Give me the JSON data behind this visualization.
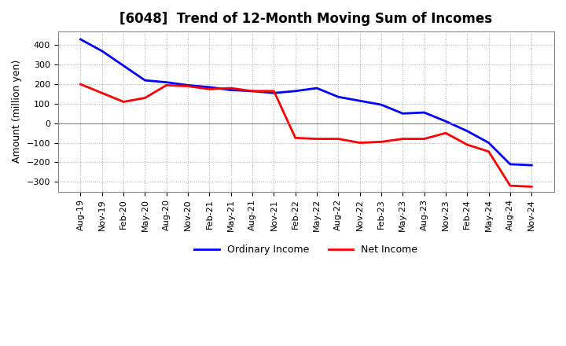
{
  "title": "[6048]  Trend of 12-Month Moving Sum of Incomes",
  "ylabel": "Amount (million yen)",
  "ylim": [
    -350,
    470
  ],
  "yticks": [
    -300,
    -200,
    -100,
    0,
    100,
    200,
    300,
    400
  ],
  "background_color": "#ffffff",
  "plot_bg_color": "#ffffff",
  "ordinary_income_color": "#0000ff",
  "net_income_color": "#ff0000",
  "ordinary_income_label": "Ordinary Income",
  "net_income_label": "Net Income",
  "x_labels": [
    "Aug-19",
    "Nov-19",
    "Feb-20",
    "May-20",
    "Aug-20",
    "Nov-20",
    "Feb-21",
    "May-21",
    "Aug-21",
    "Nov-21",
    "Feb-22",
    "May-22",
    "Aug-22",
    "Nov-22",
    "Feb-23",
    "May-23",
    "Aug-23",
    "Nov-23",
    "Feb-24",
    "May-24",
    "Aug-24",
    "Nov-24"
  ],
  "ordinary_income": [
    430,
    370,
    295,
    220,
    210,
    195,
    185,
    170,
    165,
    155,
    165,
    180,
    135,
    115,
    95,
    50,
    55,
    10,
    -40,
    -100,
    -210,
    -215
  ],
  "net_income": [
    200,
    155,
    110,
    130,
    195,
    190,
    175,
    180,
    165,
    165,
    -75,
    -80,
    -80,
    -100,
    -95,
    -80,
    -80,
    -50,
    -110,
    -145,
    -320,
    -325
  ]
}
